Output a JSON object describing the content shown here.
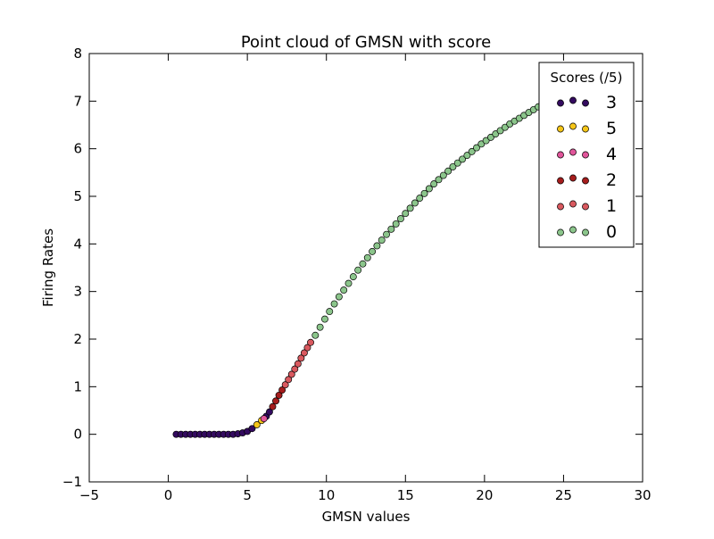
{
  "chart_data": {
    "type": "scatter",
    "title": "Point cloud of GMSN with score",
    "xlabel": "GMSN values",
    "ylabel": "Firing Rates",
    "xlim": [
      -5,
      30
    ],
    "ylim": [
      -1,
      8
    ],
    "x_ticks": [
      -5,
      0,
      5,
      10,
      15,
      20,
      25,
      30
    ],
    "y_ticks": [
      -1,
      0,
      1,
      2,
      3,
      4,
      5,
      6,
      7,
      8
    ],
    "x_tick_labels": [
      "−5",
      "0",
      "5",
      "10",
      "15",
      "20",
      "25",
      "30"
    ],
    "y_tick_labels": [
      "−1",
      "0",
      "1",
      "2",
      "3",
      "4",
      "5",
      "6",
      "7",
      "8"
    ],
    "grid": false,
    "legend": {
      "title": "Scores (/5)",
      "placement": "top-right"
    },
    "series": [
      {
        "name": "3",
        "color": "#330a5f",
        "x": [
          0.5,
          0.8,
          1.1,
          1.4,
          1.7,
          2.0,
          2.3,
          2.6,
          2.9,
          3.2,
          3.5,
          3.8,
          4.1,
          4.4,
          4.7,
          5.0,
          5.3,
          6.2,
          6.4
        ],
        "y": [
          0,
          0,
          0,
          0,
          0,
          0,
          0,
          0,
          0,
          0,
          0,
          0,
          0,
          0.01,
          0.03,
          0.06,
          0.12,
          0.38,
          0.47
        ]
      },
      {
        "name": "5",
        "color": "#f5c518",
        "x": [
          5.6,
          5.9
        ],
        "y": [
          0.2,
          0.29
        ]
      },
      {
        "name": "4",
        "color": "#e0559a",
        "x": [
          6.05
        ],
        "y": [
          0.33
        ]
      },
      {
        "name": "2",
        "color": "#a51d1d",
        "x": [
          6.6,
          6.8,
          7.0,
          7.2
        ],
        "y": [
          0.58,
          0.7,
          0.82,
          0.93
        ]
      },
      {
        "name": "1",
        "color": "#d9595f",
        "x": [
          7.4,
          7.6,
          7.8,
          8.0,
          8.2,
          8.4,
          8.6,
          8.8,
          9.0
        ],
        "y": [
          1.04,
          1.15,
          1.26,
          1.37,
          1.48,
          1.6,
          1.71,
          1.82,
          1.93
        ]
      },
      {
        "name": "0",
        "color": "#8bc58b",
        "x": [
          9.3,
          9.6,
          9.9,
          10.2,
          10.5,
          10.8,
          11.1,
          11.4,
          11.7,
          12.0,
          12.3,
          12.6,
          12.9,
          13.2,
          13.5,
          13.8,
          14.1,
          14.4,
          14.7,
          15.0,
          15.3,
          15.6,
          15.9,
          16.2,
          16.5,
          16.8,
          17.1,
          17.4,
          17.7,
          18.0,
          18.3,
          18.6,
          18.9,
          19.2,
          19.5,
          19.8,
          20.1,
          20.4,
          20.7,
          21.0,
          21.3,
          21.6,
          21.9,
          22.2,
          22.5,
          22.8,
          23.1,
          23.4,
          23.7,
          24.0,
          24.3,
          24.6,
          24.9,
          25.2,
          25.5,
          25.8,
          26.1,
          26.4,
          26.7,
          27.0,
          27.3
        ],
        "y": [
          2.08,
          2.25,
          2.42,
          2.58,
          2.74,
          2.89,
          3.03,
          3.17,
          3.31,
          3.45,
          3.58,
          3.71,
          3.84,
          3.96,
          4.08,
          4.2,
          4.31,
          4.42,
          4.53,
          4.64,
          4.75,
          4.86,
          4.96,
          5.06,
          5.16,
          5.26,
          5.35,
          5.44,
          5.53,
          5.62,
          5.7,
          5.78,
          5.86,
          5.94,
          6.02,
          6.1,
          6.17,
          6.24,
          6.31,
          6.38,
          6.45,
          6.52,
          6.58,
          6.64,
          6.7,
          6.76,
          6.82,
          6.88,
          6.94,
          7.0,
          7.05,
          7.1,
          7.15,
          7.2,
          7.25,
          7.3,
          7.35,
          7.4,
          7.45,
          7.5,
          7.55
        ]
      }
    ]
  }
}
